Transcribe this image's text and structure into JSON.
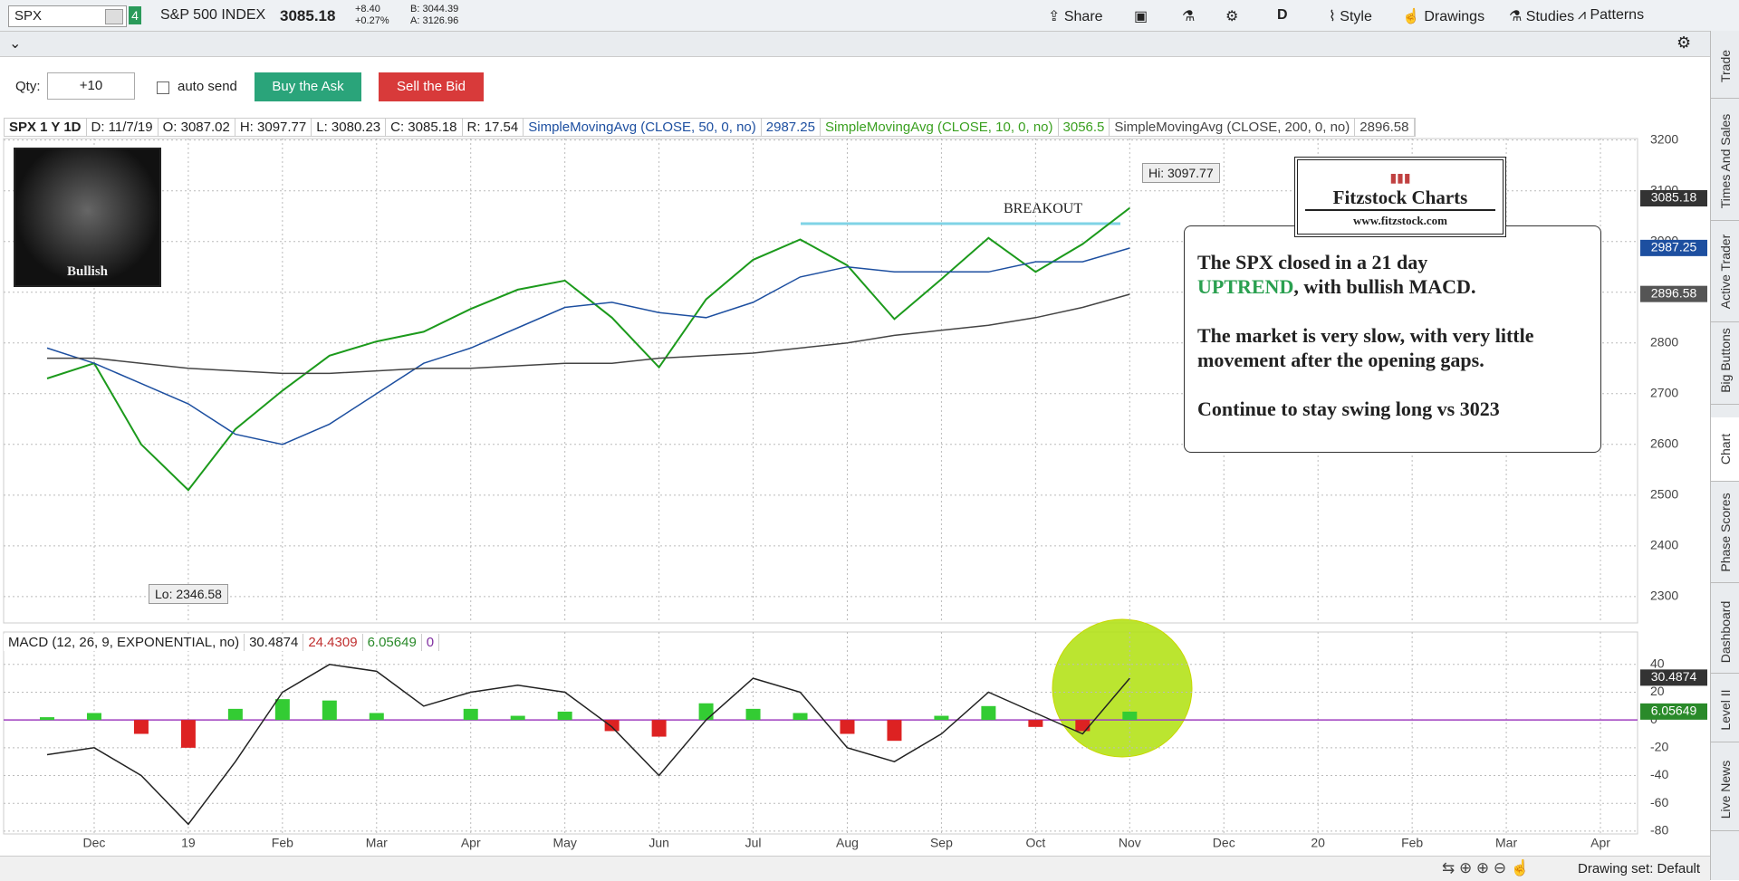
{
  "toolbar": {
    "symbol": "SPX",
    "link_group": "4",
    "description": "S&P 500 INDEX",
    "last": "3085.18",
    "net_change": "+8.40",
    "pct_change": "+0.27%",
    "bid": "B: 3044.39",
    "ask": "A: 3126.96",
    "share": "Share",
    "period": "D",
    "style": "Style",
    "drawings": "Drawings",
    "studies": "Studies",
    "patterns": "Patterns"
  },
  "order_bar": {
    "qty_label": "Qty:",
    "qty": "+10",
    "auto_send": "auto send",
    "buy": "Buy the Ask",
    "sell": "Sell the Bid"
  },
  "chart_header": {
    "date": "D: 11/7/19",
    "open": "O: 3087.02",
    "high": "H: 3097.77",
    "low": "L: 3080.23",
    "close": "C: 3085.18",
    "range": "R: 17.54",
    "sma10_name": "SimpleMovingAvg (CLOSE, 10, 0, no)",
    "sma10_value": "3056.5"
  },
  "chart_data": [
    {
      "type": "line",
      "grid": true,
      "categories": [
        null,
        "Dec",
        null,
        "19",
        null,
        "Feb",
        null,
        "Mar",
        null,
        "Apr",
        null,
        "May",
        null,
        "Jun",
        null,
        "Jul",
        null,
        "Aug",
        null,
        "Sep",
        null,
        "Oct",
        null,
        "Nov",
        null,
        "Dec",
        null,
        "20",
        null,
        "Feb",
        null,
        "Mar",
        null,
        "Apr"
      ],
      "ylim": [
        2248,
        3203
      ],
      "yticks": [
        2300,
        2400,
        2500,
        2600,
        2700,
        2800,
        2900,
        3000,
        3100,
        3200
      ],
      "series": [
        {
          "name": "SPX 1 Y 1D",
          "color": "#1c9a1c",
          "last_value": 3085.18,
          "badge_color": "#333333",
          "values": [
            2730,
            2760,
            2600,
            2510,
            2630,
            2706,
            2775,
            2803,
            2822,
            2867,
            2905,
            2923,
            2850,
            2752,
            2886,
            2964,
            3004,
            2953,
            2847,
            2926,
            3007,
            2940,
            2995,
            3066,
            null,
            null,
            null,
            null,
            null,
            null,
            null,
            null,
            null,
            null
          ]
        },
        {
          "name": "SimpleMovingAvg (CLOSE, 50, 0, no)",
          "color": "#1d4fa0",
          "last_value": 2987.25,
          "badge_color": "#1d4fa0",
          "values": [
            2790,
            2760,
            2720,
            2680,
            2620,
            2600,
            2640,
            2700,
            2760,
            2790,
            2830,
            2870,
            2880,
            2860,
            2850,
            2880,
            2930,
            2950,
            2940,
            2940,
            2940,
            2960,
            2960,
            2987,
            null,
            null,
            null,
            null,
            null,
            null,
            null,
            null,
            null,
            null
          ]
        },
        {
          "name": "SimpleMovingAvg (CLOSE, 200, 0, no)",
          "color": "#444444",
          "last_value": 2896.58,
          "badge_color": "#555555",
          "values": [
            2770,
            2770,
            2760,
            2750,
            2745,
            2740,
            2740,
            2745,
            2750,
            2750,
            2755,
            2760,
            2760,
            2770,
            2775,
            2780,
            2790,
            2800,
            2815,
            2825,
            2835,
            2850,
            2870,
            2896,
            null,
            null,
            null,
            null,
            null,
            null,
            null,
            null,
            null,
            null
          ]
        }
      ],
      "hi_label": "Hi: 3097.77",
      "lo_label": "Lo: 2346.58"
    },
    {
      "type": "macd",
      "title": "MACD (12, 26, 9, EXPONENTIAL, no)",
      "grid": true,
      "readouts": [
        30.4874,
        24.4309,
        6.05649,
        0
      ],
      "readout_colors": [
        "#222222",
        "#c03030",
        "#2a8a2a",
        "#8030a0"
      ],
      "ylim": [
        -82,
        62
      ],
      "yticks": [
        40,
        20,
        0,
        -20,
        -40,
        -60,
        -80
      ],
      "zero_line_color": "#a040c0",
      "series": [
        {
          "positive_color": "#33cc33",
          "negative_color": "#dd2222",
          "values": [
            2,
            5,
            -10,
            -20,
            8,
            15,
            14,
            5,
            0,
            8,
            3,
            6,
            -8,
            -12,
            12,
            8,
            5,
            -10,
            -15,
            3,
            10,
            -5,
            -8,
            6,
            null,
            null,
            null,
            null,
            null,
            null,
            null,
            null,
            null,
            null
          ]
        },
        {
          "color": "#222222",
          "values": [
            -25,
            -20,
            -40,
            -75,
            -30,
            20,
            40,
            35,
            10,
            20,
            25,
            20,
            -5,
            -40,
            0,
            30,
            20,
            -20,
            -30,
            -10,
            20,
            5,
            -10,
            30,
            null,
            null,
            null,
            null,
            null,
            null,
            null,
            null,
            null,
            null
          ]
        }
      ]
    }
  ],
  "overlay": {
    "bull_caption": "Bullish",
    "breakout": "BREAKOUT",
    "logo_title": "Fitzstock Charts",
    "logo_url": "www.fitzstock.com",
    "note_line1": "The SPX closed in a 21 day",
    "note_highlight": "UPTREND",
    "note_line2": ", with bullish MACD.",
    "note_para2": "The market is very slow, with very little movement after the opening gaps.",
    "note_para3": "Continue to stay swing long vs 3023"
  },
  "side_tabs": [
    "Trade",
    "Times And Sales",
    "Active Trader",
    "Big Buttons",
    "Chart",
    "Phase Scores",
    "Dashboard",
    "Level II",
    "Live News"
  ],
  "status_bar": {
    "drawing_set": "Drawing set: Default"
  }
}
